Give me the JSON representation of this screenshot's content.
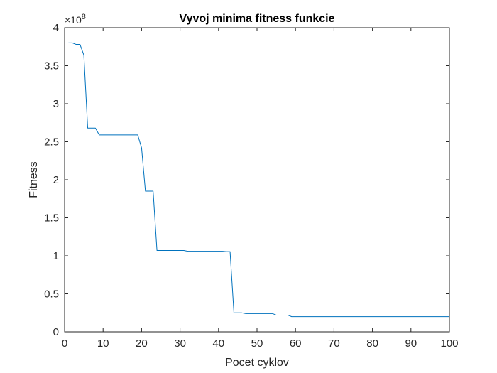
{
  "chart_data": {
    "type": "line",
    "title": "Vyvoj minima fitness funkcie",
    "xlabel": "Pocet cyklov",
    "ylabel": "Fitness",
    "xlim": [
      0,
      100
    ],
    "ylim": [
      0,
      4
    ],
    "y_multiplier_label": "×10",
    "y_multiplier_exponent": "8",
    "xticks": [
      0,
      10,
      20,
      30,
      40,
      50,
      60,
      70,
      80,
      90,
      100
    ],
    "xtick_labels": [
      "0",
      "10",
      "20",
      "30",
      "40",
      "50",
      "60",
      "70",
      "80",
      "90",
      "100"
    ],
    "yticks": [
      0,
      0.5,
      1,
      1.5,
      2,
      2.5,
      3,
      3.5,
      4
    ],
    "ytick_labels": [
      "0",
      "0.5",
      "1",
      "1.5",
      "2",
      "2.5",
      "3",
      "3.5",
      "4"
    ],
    "grid": false,
    "series": [
      {
        "color": "#0072BD",
        "x": [
          1,
          2,
          3,
          4,
          5,
          6,
          7,
          8,
          9,
          10,
          11,
          12,
          13,
          14,
          15,
          16,
          17,
          18,
          19,
          20,
          21,
          22,
          23,
          24,
          25,
          26,
          27,
          28,
          29,
          30,
          31,
          32,
          33,
          34,
          35,
          36,
          37,
          38,
          39,
          40,
          41,
          42,
          43,
          44,
          45,
          46,
          47,
          48,
          49,
          50,
          51,
          52,
          53,
          54,
          55,
          56,
          57,
          58,
          59,
          60,
          61,
          62,
          63,
          64,
          65,
          66,
          67,
          68,
          69,
          70,
          71,
          72,
          73,
          74,
          75,
          76,
          77,
          78,
          79,
          80,
          81,
          82,
          83,
          84,
          85,
          86,
          87,
          88,
          89,
          90,
          91,
          92,
          93,
          94,
          95,
          96,
          97,
          98,
          99,
          100
        ],
        "y": [
          3.8,
          3.8,
          3.78,
          3.78,
          3.64,
          2.68,
          2.68,
          2.68,
          2.59,
          2.59,
          2.59,
          2.59,
          2.59,
          2.59,
          2.59,
          2.59,
          2.59,
          2.59,
          2.59,
          2.42,
          1.85,
          1.85,
          1.85,
          1.07,
          1.07,
          1.07,
          1.07,
          1.07,
          1.07,
          1.07,
          1.07,
          1.06,
          1.06,
          1.06,
          1.06,
          1.06,
          1.06,
          1.06,
          1.06,
          1.06,
          1.06,
          1.055,
          1.055,
          0.25,
          0.25,
          0.25,
          0.24,
          0.24,
          0.24,
          0.24,
          0.24,
          0.24,
          0.24,
          0.24,
          0.22,
          0.22,
          0.22,
          0.22,
          0.2,
          0.2,
          0.2,
          0.2,
          0.2,
          0.2,
          0.2,
          0.2,
          0.2,
          0.2,
          0.2,
          0.2,
          0.2,
          0.2,
          0.2,
          0.2,
          0.2,
          0.2,
          0.2,
          0.2,
          0.2,
          0.2,
          0.2,
          0.2,
          0.2,
          0.2,
          0.2,
          0.2,
          0.2,
          0.2,
          0.2,
          0.2,
          0.2,
          0.2,
          0.2,
          0.2,
          0.2,
          0.2,
          0.2,
          0.2,
          0.2,
          0.2
        ]
      }
    ]
  }
}
